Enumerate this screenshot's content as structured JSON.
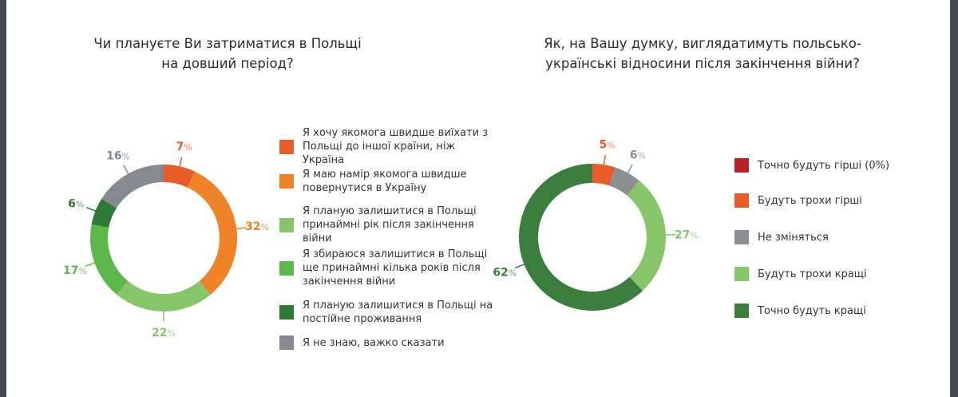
{
  "chart_data": [
    {
      "type": "pie",
      "donut": true,
      "title": "Чи плануєте Ви затриматися в Польщі на довший період?",
      "title_lines": [
        "Чи плануєте Ви затриматися в Польщі",
        "на довший період?"
      ],
      "categories": [
        "Я хочу якомога швидше виїхати з Польщі до іншої країни, ніж Україна",
        "Я маю намір якомога швидше повернутися в Україну",
        "Я планую залишитися в Польщі принаймні рік після закінчення війни",
        "Я збираюся залишитися в Польщі ще принаймні кілька років після закінчення війни",
        "Я планую залишитися в Польщі на постійне проживання",
        "Я не знаю, важко сказати"
      ],
      "values": [
        7,
        32,
        22,
        17,
        6,
        16
      ],
      "colors": [
        "#ea5b2a",
        "#f08228",
        "#86c56a",
        "#5cb84a",
        "#2f7a37",
        "#868a8e"
      ],
      "legend_position": "right"
    },
    {
      "type": "pie",
      "donut": true,
      "title": "Як, на Вашу думку, виглядатимуть польсько-українські відносини після закінчення війни?",
      "title_lines": [
        "Як, на Вашу думку, виглядатимуть польсько-",
        "українські відносини після закінчення війни?"
      ],
      "categories": [
        "Точно будуть гірші (0%)",
        "Будуть трохи гірші",
        "Не зміняться",
        "Будуть трохи кращі",
        "Точно будуть кращі"
      ],
      "values": [
        0,
        5,
        6,
        27,
        62
      ],
      "colors": [
        "#b8202a",
        "#ea5b2a",
        "#8c8f92",
        "#86c56a",
        "#3a7d3c"
      ],
      "legend_position": "right"
    }
  ]
}
